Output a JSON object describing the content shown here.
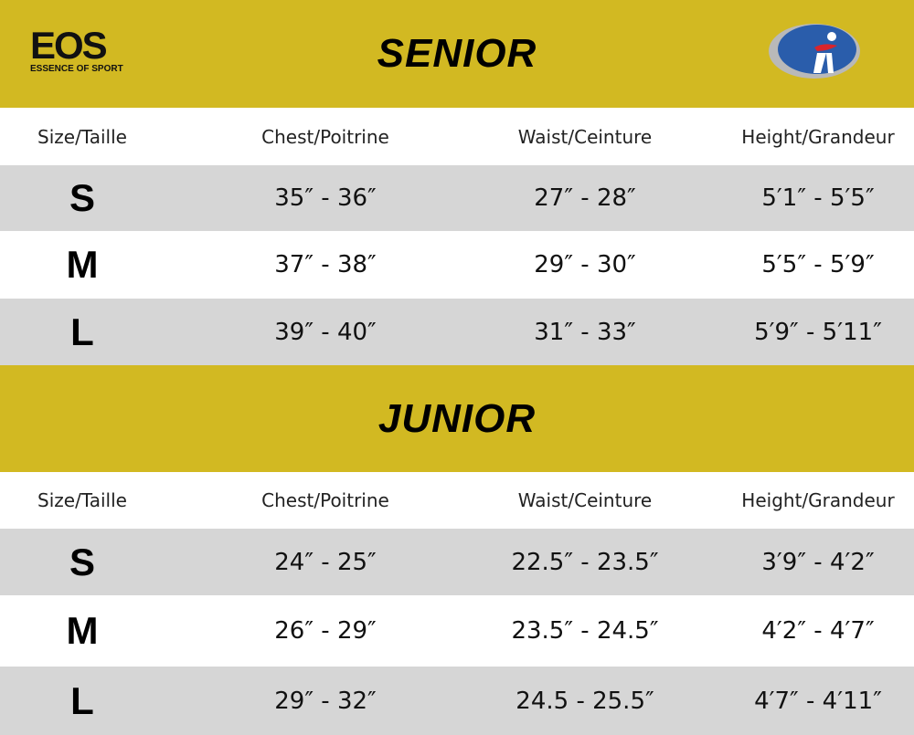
{
  "logo_left": {
    "mark": "EOS",
    "tagline": "ESSENCE OF SPORT"
  },
  "colors": {
    "band": "#d2b922",
    "row_alt": "#d6d6d6"
  },
  "headers": [
    "Size/Taille",
    "Chest/Poitrine",
    "Waist/Ceinture",
    "Height/Grandeur"
  ],
  "senior": {
    "title": "SENIOR",
    "rows": [
      [
        "S",
        "35″ - 36″",
        "27″ - 28″",
        "5′1″ - 5′5″"
      ],
      [
        "M",
        "37″ - 38″",
        "29″ - 30″",
        "5′5″ - 5′9″"
      ],
      [
        "L",
        "39″ - 40″",
        "31″ - 33″",
        "5′9″ - 5′11″"
      ]
    ]
  },
  "junior": {
    "title": "JUNIOR",
    "rows": [
      [
        "S",
        "24″ - 25″",
        "22.5″ - 23.5″",
        "3′9″ - 4′2″"
      ],
      [
        "M",
        "26″ - 29″",
        "23.5″ - 24.5″",
        "4′2″ - 4′7″"
      ],
      [
        "L",
        "29″ - 32″",
        "24.5 - 25.5″",
        "4′7″ - 4′11″"
      ]
    ]
  }
}
